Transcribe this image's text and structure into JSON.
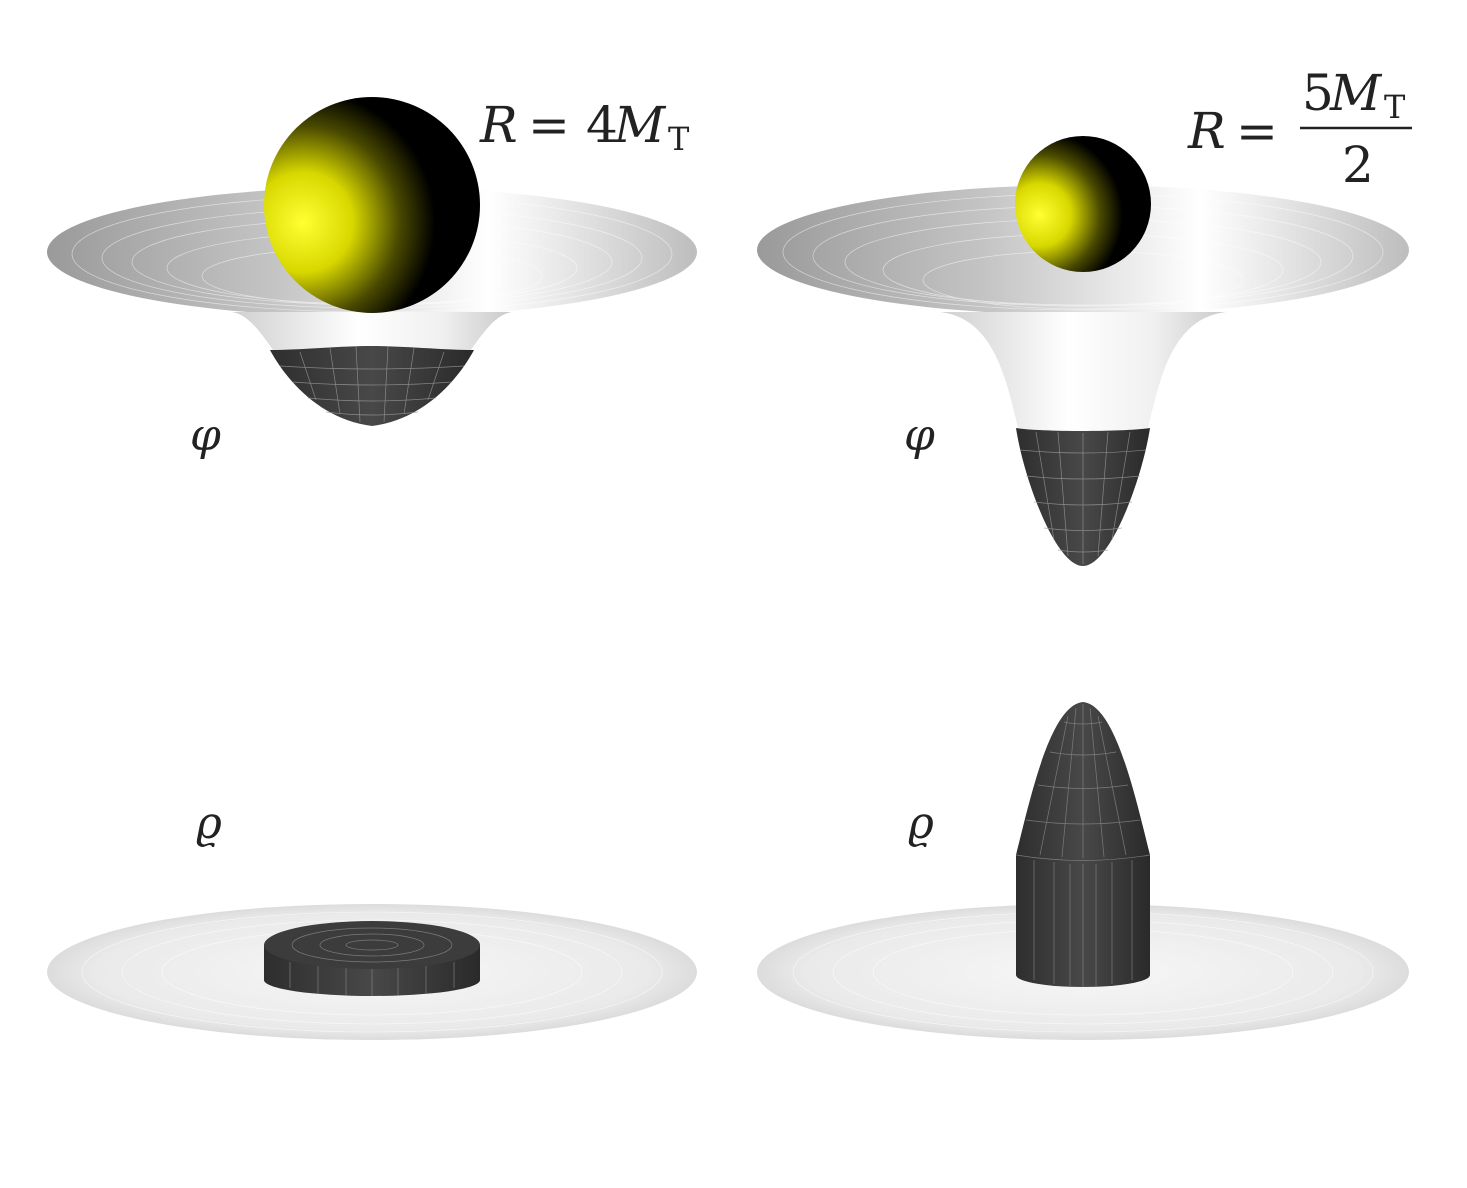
{
  "panels": [
    {
      "id": "left",
      "radius_label": {
        "lhs": "R",
        "eq": "=",
        "coef": "4",
        "sym": "M",
        "sub": "T"
      },
      "potential_label": "φ",
      "density_label": "ϱ",
      "well_depth": 0.33,
      "sphere_size": 0.5,
      "density_height": 0.1
    },
    {
      "id": "right",
      "radius_label": {
        "lhs": "R",
        "eq": "=",
        "num_coef": "5",
        "sym": "M",
        "sub": "T",
        "den": "2"
      },
      "potential_label": "φ",
      "density_label": "ϱ",
      "well_depth": 1.0,
      "sphere_size": 0.32,
      "density_height": 1.0
    }
  ],
  "colors": {
    "sphere_highlight": "#ffff33",
    "sphere_mid": "#c8c800",
    "sphere_dark": "#000000",
    "surface_light": "#f4f4f4",
    "surface_mid": "#a0a0a0",
    "surface_dark": "#3a3a3a",
    "mesh": "#ffffff"
  }
}
